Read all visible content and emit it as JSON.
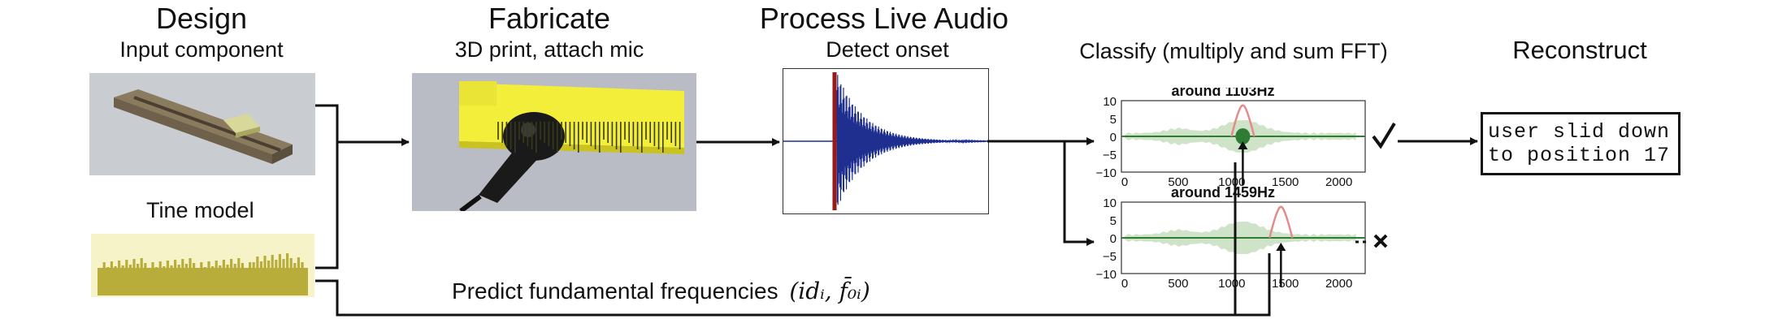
{
  "stages": {
    "design": {
      "title": "Design",
      "subtitle": "Input component",
      "model_label": "Tine model"
    },
    "fabricate": {
      "title": "Fabricate",
      "subtitle": "3D print, attach mic"
    },
    "process": {
      "title": "Process Live Audio",
      "subtitle": "Detect onset"
    },
    "classify": {
      "subtitle": "Classify (multiply and sum FFT)"
    },
    "reconstruct": {
      "title": "Reconstruct",
      "output_line1": "user slid down",
      "output_line2": "to position 17"
    }
  },
  "predict_label": "Predict fundamental frequencies",
  "predict_math": "(idᵢ, f̄₀ᵢ)",
  "plots": [
    {
      "title": "around 1103Hz",
      "result": "check",
      "x_ticks": [
        "0",
        "500",
        "1000",
        "1500",
        "2000"
      ],
      "y_ticks": [
        "10",
        "5",
        "0",
        "−5",
        "−10"
      ],
      "peak_hz": 1103
    },
    {
      "title": "around 1459Hz",
      "result": "cross",
      "x_ticks": [
        "0",
        "500",
        "1000",
        "1500",
        "2000"
      ],
      "y_ticks": [
        "10",
        "5",
        "0",
        "−5",
        "−10"
      ],
      "peak_hz": 1459
    }
  ],
  "colors": {
    "line": "#111111",
    "waveform": "#1f2f8f",
    "onset": "#9a1a1a",
    "fft_fill": "#cfe3c8",
    "fft_match": "#2e7d32",
    "ideal": "#e58a8a",
    "tine": "#b8ad3a",
    "print": "#f2ee3a"
  }
}
